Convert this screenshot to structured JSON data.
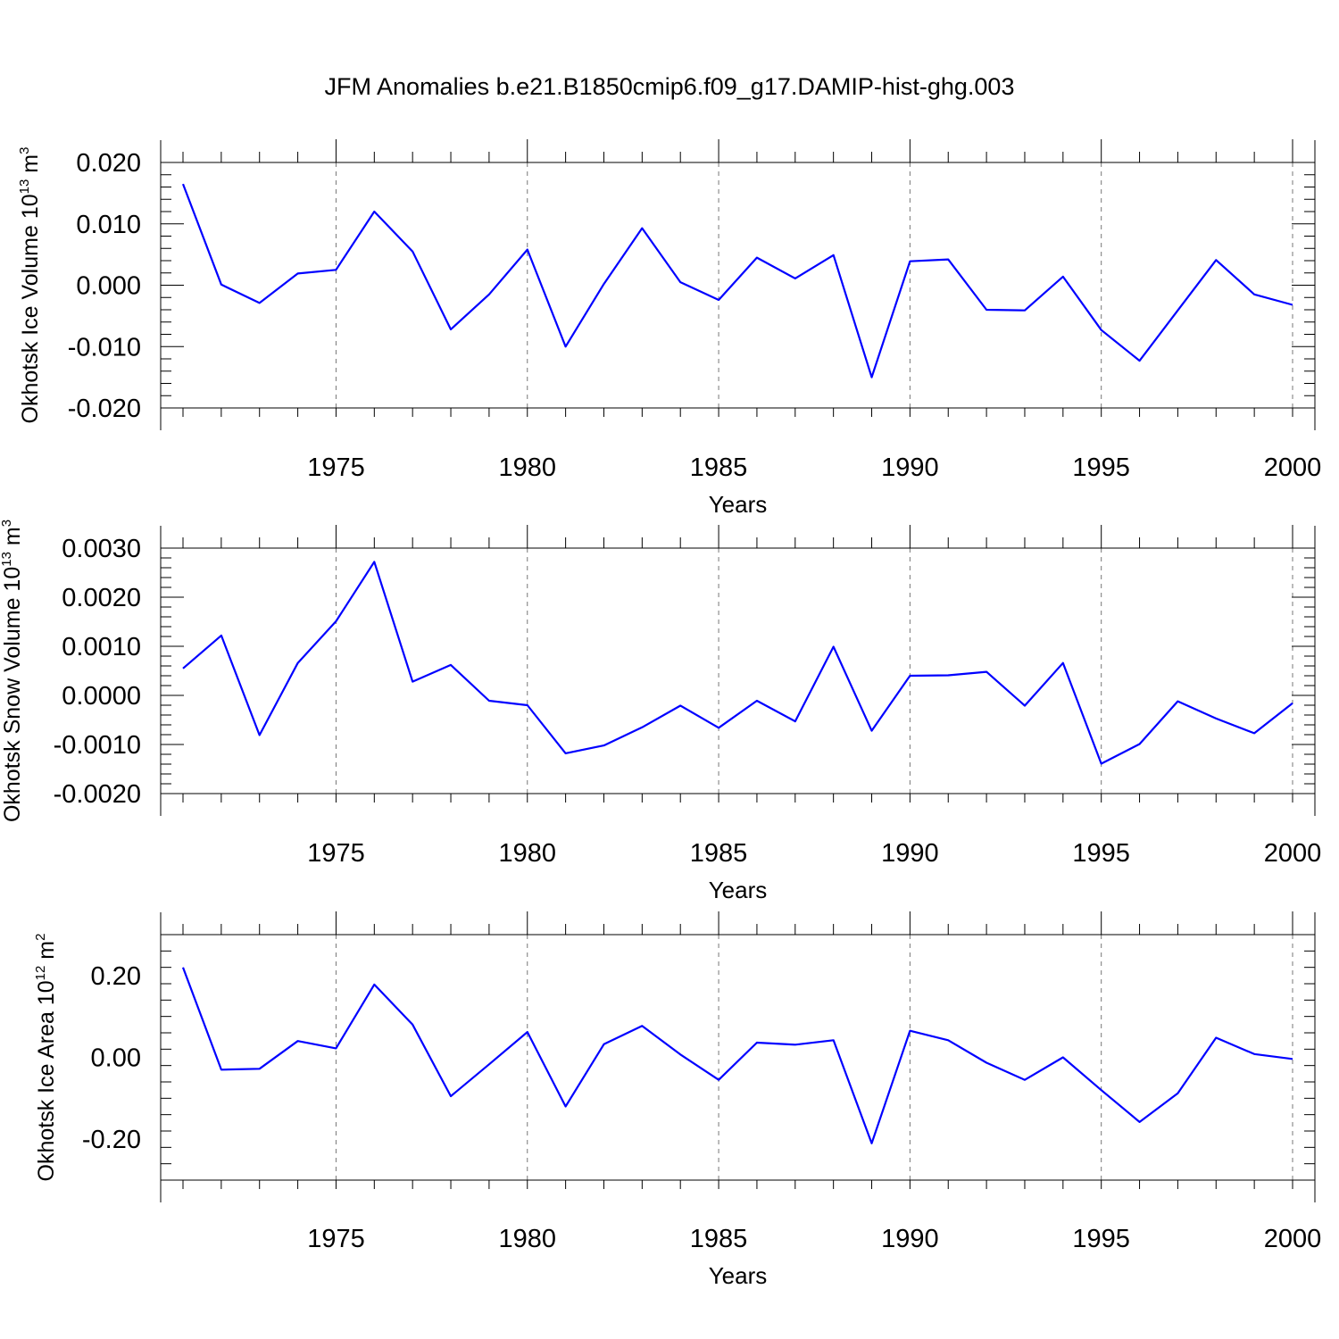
{
  "title": "JFM Anomalies b.e21.B1850cmip6.f09_g17.DAMIP-hist-ghg.003",
  "colors": {
    "series": "#0000ff",
    "grid": "#777777"
  },
  "chart_data": [
    {
      "type": "line",
      "xlabel": "Years",
      "ylabel_prefix": "Okhotsk Ice Volume 10",
      "ylabel_exp": "13",
      "ylabel_unit": " m",
      "ylabel_unit_exp": "3",
      "xlim": [
        1971,
        2000
      ],
      "ylim": [
        -0.02,
        0.02
      ],
      "major_ticks_y": [
        -0.02,
        -0.01,
        0.0,
        0.01,
        0.02
      ],
      "y_tick_labels": [
        "-0.020",
        "-0.010",
        "0.000",
        "0.010",
        "0.020"
      ],
      "major_ticks_x": [
        1975,
        1980,
        1985,
        1990,
        1995,
        2000
      ],
      "x_tick_labels": [
        "1975",
        "1980",
        "1985",
        "1990",
        "1995",
        "2000"
      ],
      "grid": "x-dashed",
      "x": [
        1971,
        1972,
        1973,
        1974,
        1975,
        1976,
        1977,
        1978,
        1979,
        1980,
        1981,
        1982,
        1983,
        1984,
        1985,
        1986,
        1987,
        1988,
        1989,
        1990,
        1991,
        1992,
        1993,
        1994,
        1995,
        1996,
        1997,
        1998,
        1999,
        2000
      ],
      "y": [
        0.0165,
        0.0001,
        -0.0029,
        0.0019,
        0.0025,
        0.012,
        0.0055,
        -0.0072,
        -0.0015,
        0.0058,
        -0.01,
        0.0002,
        0.0093,
        0.0005,
        -0.0024,
        0.0045,
        0.0011,
        0.0049,
        -0.015,
        0.0039,
        0.0042,
        -0.004,
        -0.0041,
        0.0014,
        -0.0073,
        -0.0123,
        -0.0041,
        0.0041,
        -0.0015,
        -0.0032
      ]
    },
    {
      "type": "line",
      "xlabel": "Years",
      "ylabel_prefix": "Okhotsk Snow Volume 10",
      "ylabel_exp": "13",
      "ylabel_unit": " m",
      "ylabel_unit_exp": "3",
      "xlim": [
        1971,
        2000
      ],
      "ylim": [
        -0.002,
        0.003
      ],
      "major_ticks_y": [
        -0.002,
        -0.001,
        0.0,
        0.001,
        0.002,
        0.003
      ],
      "y_tick_labels": [
        "-0.0020",
        "-0.0010",
        "0.0000",
        "0.0010",
        "0.0020",
        "0.0030"
      ],
      "major_ticks_x": [
        1975,
        1980,
        1985,
        1990,
        1995,
        2000
      ],
      "x_tick_labels": [
        "1975",
        "1980",
        "1985",
        "1990",
        "1995",
        "2000"
      ],
      "grid": "x-dashed",
      "x": [
        1971,
        1972,
        1973,
        1974,
        1975,
        1976,
        1977,
        1978,
        1979,
        1980,
        1981,
        1982,
        1983,
        1984,
        1985,
        1986,
        1987,
        1988,
        1989,
        1990,
        1991,
        1992,
        1993,
        1994,
        1995,
        1996,
        1997,
        1998,
        1999,
        2000
      ],
      "y": [
        0.00055,
        0.00122,
        -0.00081,
        0.00066,
        0.00151,
        0.00272,
        0.00028,
        0.00062,
        -0.00011,
        -0.0002,
        -0.00118,
        -0.00102,
        -0.00065,
        -0.00021,
        -0.00066,
        -0.00011,
        -0.00053,
        0.00099,
        -0.00072,
        0.0004,
        0.00041,
        0.00048,
        -0.00021,
        0.00066,
        -0.00139,
        -0.00099,
        -0.00012,
        -0.00047,
        -0.00077,
        -0.00016
      ]
    },
    {
      "type": "line",
      "xlabel": "Years",
      "ylabel_prefix": "Okhotsk Ice Area 10",
      "ylabel_exp": "12",
      "ylabel_unit": " m",
      "ylabel_unit_exp": "2",
      "xlim": [
        1971,
        2000
      ],
      "ylim": [
        -0.3,
        0.3
      ],
      "major_ticks_y": [
        -0.2,
        0.0,
        0.2
      ],
      "y_tick_labels": [
        "-0.20",
        "0.00",
        "0.20"
      ],
      "major_ticks_x": [
        1975,
        1980,
        1985,
        1990,
        1995,
        2000
      ],
      "x_tick_labels": [
        "1975",
        "1980",
        "1985",
        "1990",
        "1995",
        "2000"
      ],
      "grid": "x-dashed",
      "x": [
        1971,
        1972,
        1973,
        1974,
        1975,
        1976,
        1977,
        1978,
        1979,
        1980,
        1981,
        1982,
        1983,
        1984,
        1985,
        1986,
        1987,
        1988,
        1989,
        1990,
        1991,
        1992,
        1993,
        1994,
        1995,
        1996,
        1997,
        1998,
        1999,
        2000
      ],
      "y": [
        0.22,
        -0.03,
        -0.028,
        0.04,
        0.022,
        0.178,
        0.08,
        -0.095,
        -0.017,
        0.062,
        -0.12,
        0.032,
        0.077,
        0.007,
        -0.055,
        0.036,
        0.031,
        0.042,
        -0.21,
        0.065,
        0.042,
        -0.013,
        -0.055,
        0.0,
        -0.08,
        -0.158,
        -0.088,
        0.048,
        0.008,
        -0.004
      ]
    }
  ]
}
